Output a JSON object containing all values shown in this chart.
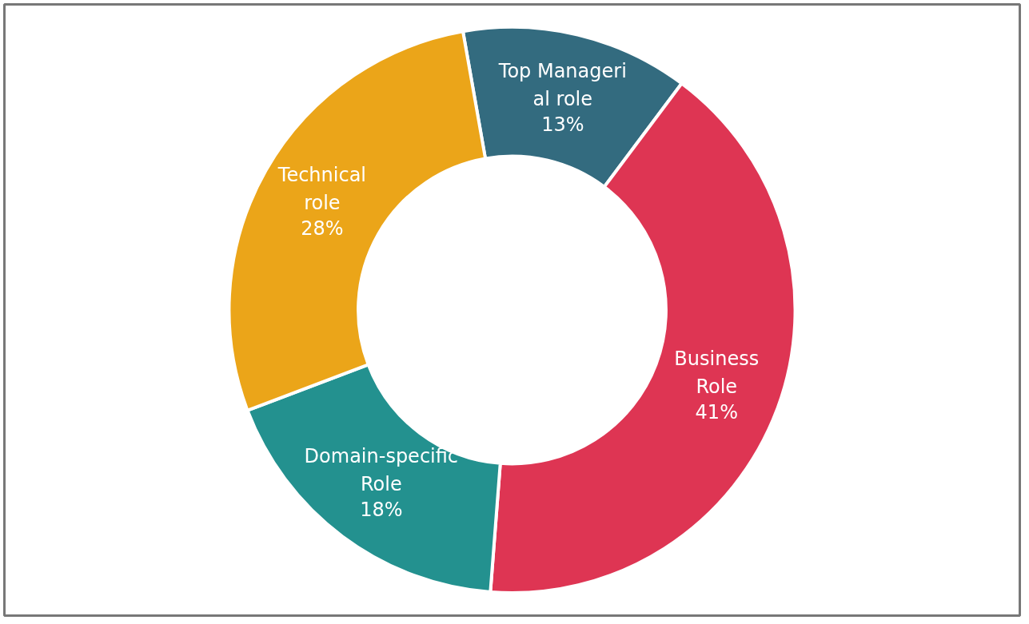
{
  "chart_data": {
    "type": "donut",
    "categories": [
      "Top Manageri al role",
      "Business Role",
      "Domain-specific Role",
      "Technical role"
    ],
    "values": [
      13,
      41,
      18,
      28
    ],
    "colors": [
      "#336b7f",
      "#de3553",
      "#23918f",
      "#eba519"
    ],
    "value_labels": [
      "13%",
      "41%",
      "18%",
      "28%"
    ]
  }
}
